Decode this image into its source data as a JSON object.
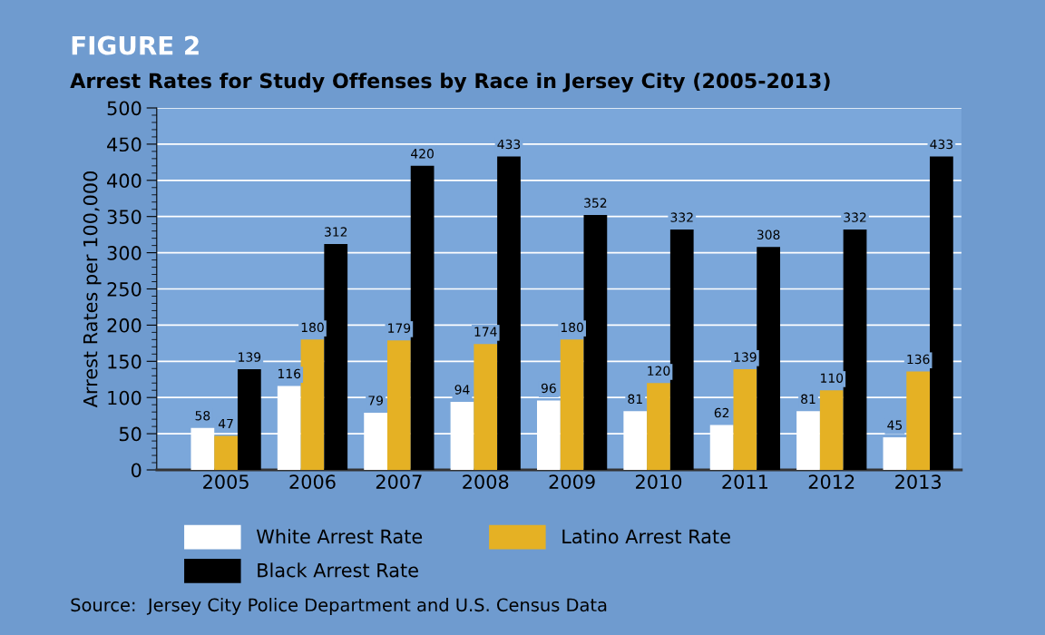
{
  "chart_data": {
    "type": "bar",
    "title": "FIGURE 2",
    "subtitle": "Arrest Rates for Study Offenses by Race in Jersey City (2005-2013)",
    "ylabel": "Arrest Rates per 100,000",
    "categories": [
      "2005",
      "2006",
      "2007",
      "2008",
      "2009",
      "2010",
      "2011",
      "2012",
      "2013"
    ],
    "series": [
      {
        "name": "White Arrest Rate",
        "color": "#ffffff",
        "values": [
          58,
          116,
          79,
          94,
          96,
          81,
          62,
          81,
          45
        ]
      },
      {
        "name": "Latino Arrest Rate",
        "color": "#e5b124",
        "values": [
          47,
          180,
          179,
          174,
          180,
          120,
          139,
          110,
          136
        ]
      },
      {
        "name": "Black Arrest Rate",
        "color": "#000000",
        "values": [
          139,
          312,
          420,
          433,
          352,
          332,
          308,
          332,
          433
        ]
      }
    ],
    "ylim": [
      0,
      500
    ],
    "yticks": [
      0,
      50,
      100,
      150,
      200,
      250,
      300,
      350,
      400,
      450,
      500
    ],
    "grid": "y",
    "legend": "bottom",
    "data_labels": true,
    "annotations": [
      "Source:  Jersey City Police Department and U.S. Census Data"
    ]
  }
}
